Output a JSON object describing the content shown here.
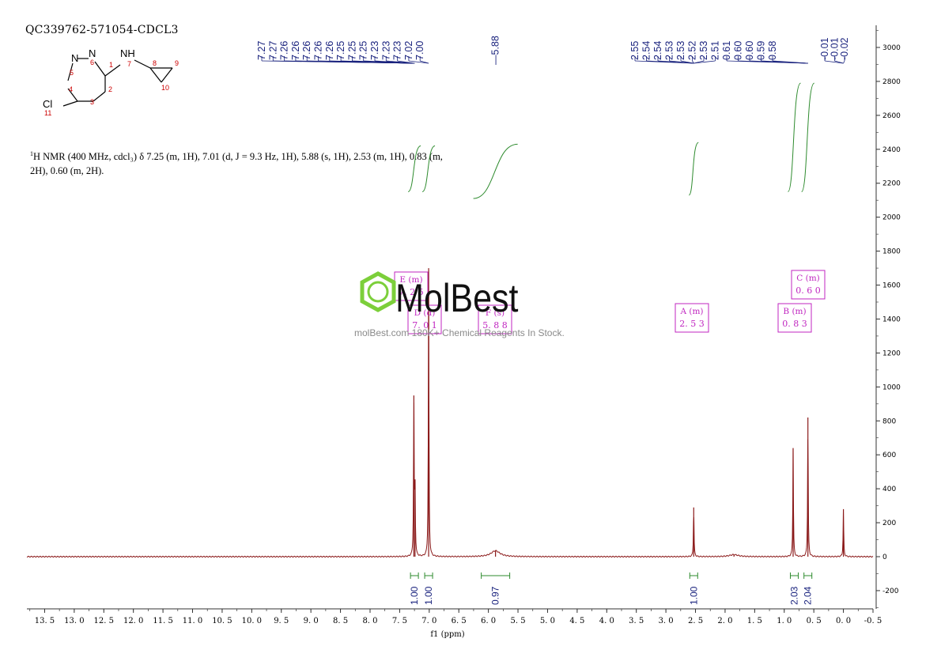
{
  "sample_id": "QC339762-571054-CDCL3",
  "nmr_summary": {
    "nucleus_sup": "1",
    "line1": "H NMR (400 MHz, cdcl₃) δ 7.25 (m, 1H), 7.01 (d, J = 9.3 Hz, 1H), 5.88 (s, 1H), 2.53 (m, 1H), 0.83 (m,",
    "line2": "2H), 0.60 (m, 2H)."
  },
  "structure": {
    "atoms": {
      "n_left": "N",
      "n_right": "N",
      "nh": "NH",
      "cl": "Cl"
    },
    "atom_numbers": [
      "1",
      "2",
      "3",
      "4",
      "5",
      "6",
      "7",
      "8",
      "9",
      "10",
      "11"
    ]
  },
  "watermark": {
    "brand": "MolBest",
    "tagline": "molBest.com 180K+ Chemical Reagents In Stock."
  },
  "colors": {
    "spectrum": "#8b1a1a",
    "peak_labels": "#1a237e",
    "integrals": "#2e8b2e",
    "multiplet_boxes": "#c026c0",
    "axis": "#333333",
    "atom_numbers": "#cc0000"
  },
  "chart_data": {
    "type": "line",
    "xlabel": "f1 (ppm)",
    "x_reversed": true,
    "xlim": [
      13.8,
      -0.5
    ],
    "ylim": [
      -300,
      3100
    ],
    "x_ticks": [
      "13.5",
      "13.0",
      "12.5",
      "12.0",
      "11.5",
      "11.0",
      "10.5",
      "10.0",
      "9.5",
      "9.0",
      "8.5",
      "8.0",
      "7.5",
      "7.0",
      "6.5",
      "6.0",
      "5.5",
      "5.0",
      "4.5",
      "4.0",
      "3.5",
      "3.0",
      "2.5",
      "2.0",
      "1.5",
      "1.0",
      "0.5",
      "0.0",
      "-0.5"
    ],
    "y_ticks": [
      "-200",
      "0",
      "200",
      "400",
      "600",
      "800",
      "1000",
      "1200",
      "1400",
      "1600",
      "1800",
      "2000",
      "2200",
      "2400",
      "2600",
      "2800",
      "3000"
    ],
    "peaks": [
      {
        "ppm": 7.26,
        "height": 950
      },
      {
        "ppm": 7.24,
        "height": 430
      },
      {
        "ppm": 7.01,
        "height": 1700
      },
      {
        "ppm": 5.88,
        "height": 35,
        "broad": true
      },
      {
        "ppm": 2.53,
        "height": 290
      },
      {
        "ppm": 1.85,
        "height": 12,
        "broad": true
      },
      {
        "ppm": 0.85,
        "height": 640
      },
      {
        "ppm": 0.6,
        "height": 820
      },
      {
        "ppm": 0.0,
        "height": 280
      }
    ],
    "peak_labels_group1": [
      "7.27",
      "7.27",
      "7.26",
      "7.26",
      "7.26",
      "7.26",
      "7.26",
      "7.25",
      "7.25",
      "7.25",
      "7.23",
      "7.23",
      "7.23",
      "7.02",
      "7.00"
    ],
    "peak_label_single": "5.88",
    "peak_labels_group2": [
      "2.55",
      "2.54",
      "2.54",
      "2.53",
      "2.53",
      "2.52",
      "2.53",
      "2.51",
      "0.61",
      "0.60",
      "0.60",
      "0.59",
      "0.58"
    ],
    "peak_labels_group3": [
      "-0.01",
      "-0.01",
      "-0.02"
    ],
    "integrals": [
      {
        "ppm": 7.25,
        "value": "1.00"
      },
      {
        "ppm": 7.01,
        "value": "1.00"
      },
      {
        "ppm": 5.88,
        "value": "0.97"
      },
      {
        "ppm": 2.53,
        "value": "1.00"
      },
      {
        "ppm": 0.83,
        "value": "2.03"
      },
      {
        "ppm": 0.6,
        "value": "2.04"
      }
    ],
    "multiplets": [
      {
        "letter": "E (m)",
        "shift": "7.25"
      },
      {
        "letter": "D (d)",
        "shift": "7.01"
      },
      {
        "letter": "F (s)",
        "shift": "5.88"
      },
      {
        "letter": "A (m)",
        "shift": "2.53"
      },
      {
        "letter": "B (m)",
        "shift": "0.83"
      },
      {
        "letter": "C (m)",
        "shift": "0.60"
      }
    ]
  }
}
